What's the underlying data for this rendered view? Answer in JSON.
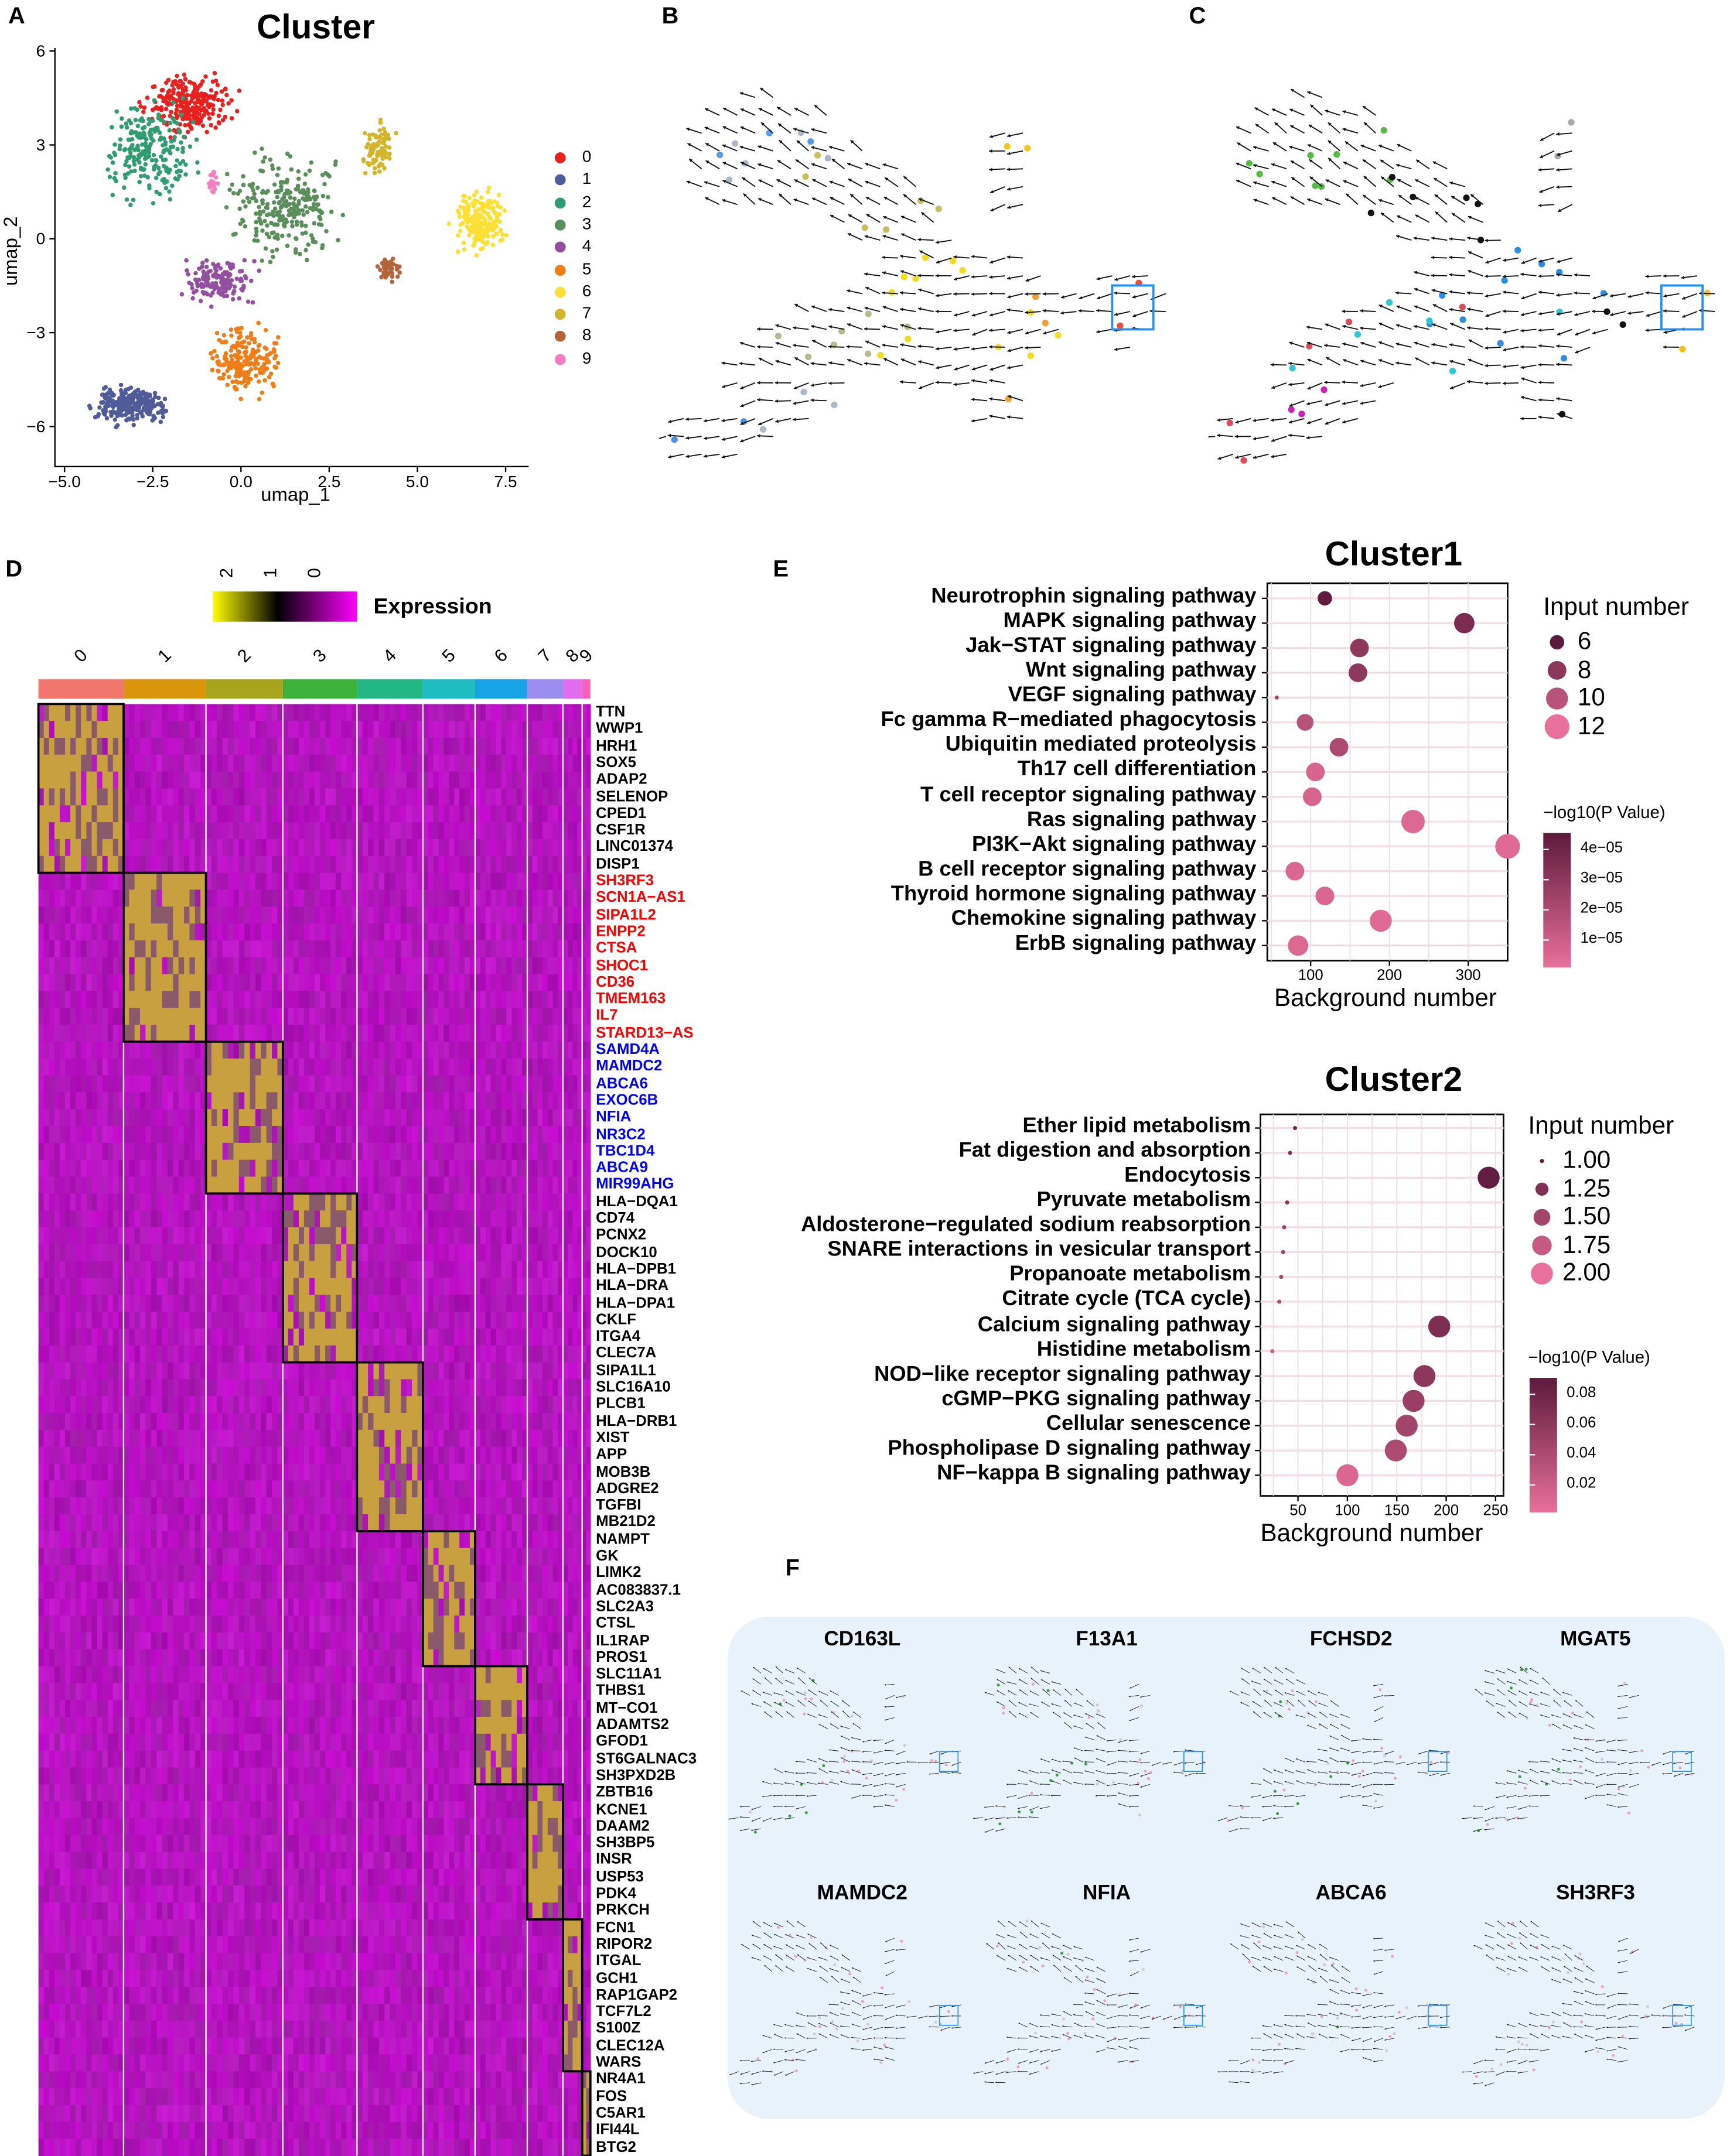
{
  "panels": {
    "A": "A",
    "B": "B",
    "C": "C",
    "D": "D",
    "E": "E",
    "F": "F"
  },
  "panel_a": {
    "title": "Cluster",
    "xlabel": "umap_1",
    "ylabel": "umap_2",
    "xticks": [
      "−5.0",
      "−2.5",
      "0.0",
      "2.5",
      "5.0",
      "7.5"
    ],
    "yticks": [
      "6",
      "3",
      "0",
      "−3",
      "−6"
    ],
    "legend": [
      {
        "label": "0",
        "color": "#E8201E"
      },
      {
        "label": "1",
        "color": "#4F5C99"
      },
      {
        "label": "2",
        "color": "#2F9C72"
      },
      {
        "label": "3",
        "color": "#5A8E5A"
      },
      {
        "label": "4",
        "color": "#9450A0"
      },
      {
        "label": "5",
        "color": "#F07E18"
      },
      {
        "label": "6",
        "color": "#FCE036"
      },
      {
        "label": "7",
        "color": "#D2B52A"
      },
      {
        "label": "8",
        "color": "#B4643A"
      },
      {
        "label": "9",
        "color": "#F47FBE"
      }
    ]
  },
  "panel_d": {
    "legend_title": "Expression",
    "legend_ticks": [
      "2",
      "1",
      "0"
    ],
    "cluster_labels": [
      "0",
      "1",
      "2",
      "3",
      "4",
      "5",
      "6",
      "7",
      "8",
      "9"
    ],
    "cluster_colors": [
      "#F0766E",
      "#D9960C",
      "#A8A41C",
      "#3DB23A",
      "#22B784",
      "#1FBCC2",
      "#18A3E6",
      "#9B8CF0",
      "#E06CF0",
      "#FB62B9"
    ],
    "genes": [
      {
        "name": "TTN",
        "color": "#000000",
        "cluster": 0
      },
      {
        "name": "WWP1",
        "color": "#000000",
        "cluster": 0
      },
      {
        "name": "HRH1",
        "color": "#000000",
        "cluster": 0
      },
      {
        "name": "SOX5",
        "color": "#000000",
        "cluster": 0
      },
      {
        "name": "ADAP2",
        "color": "#000000",
        "cluster": 0
      },
      {
        "name": "SELENOP",
        "color": "#000000",
        "cluster": 0
      },
      {
        "name": "CPED1",
        "color": "#000000",
        "cluster": 0
      },
      {
        "name": "CSF1R",
        "color": "#000000",
        "cluster": 0
      },
      {
        "name": "LINC01374",
        "color": "#000000",
        "cluster": 0
      },
      {
        "name": "DISP1",
        "color": "#000000",
        "cluster": 0
      },
      {
        "name": "SH3RF3",
        "color": "#FF0000",
        "cluster": 1
      },
      {
        "name": "SCN1A−AS1",
        "color": "#FF0000",
        "cluster": 1
      },
      {
        "name": "SIPA1L2",
        "color": "#FF0000",
        "cluster": 1
      },
      {
        "name": "ENPP2",
        "color": "#FF0000",
        "cluster": 1
      },
      {
        "name": "CTSA",
        "color": "#FF0000",
        "cluster": 1
      },
      {
        "name": "SHOC1",
        "color": "#FF0000",
        "cluster": 1
      },
      {
        "name": "CD36",
        "color": "#FF0000",
        "cluster": 1
      },
      {
        "name": "TMEM163",
        "color": "#FF0000",
        "cluster": 1
      },
      {
        "name": "IL7",
        "color": "#FF0000",
        "cluster": 1
      },
      {
        "name": "STARD13−AS",
        "color": "#FF0000",
        "cluster": 1
      },
      {
        "name": "SAMD4A",
        "color": "#0000FF",
        "cluster": 2
      },
      {
        "name": "MAMDC2",
        "color": "#0000FF",
        "cluster": 2
      },
      {
        "name": "ABCA6",
        "color": "#0000FF",
        "cluster": 2
      },
      {
        "name": "EXOC6B",
        "color": "#0000FF",
        "cluster": 2
      },
      {
        "name": "NFIA",
        "color": "#0000FF",
        "cluster": 2
      },
      {
        "name": "NR3C2",
        "color": "#0000FF",
        "cluster": 2
      },
      {
        "name": "TBC1D4",
        "color": "#0000FF",
        "cluster": 2
      },
      {
        "name": "ABCA9",
        "color": "#0000FF",
        "cluster": 2
      },
      {
        "name": "MIR99AHG",
        "color": "#0000FF",
        "cluster": 2
      },
      {
        "name": "HLA−DQA1",
        "color": "#000000",
        "cluster": 3
      },
      {
        "name": "CD74",
        "color": "#000000",
        "cluster": 3
      },
      {
        "name": "PCNX2",
        "color": "#000000",
        "cluster": 3
      },
      {
        "name": "DOCK10",
        "color": "#000000",
        "cluster": 3
      },
      {
        "name": "HLA−DPB1",
        "color": "#000000",
        "cluster": 3
      },
      {
        "name": "HLA−DRA",
        "color": "#000000",
        "cluster": 3
      },
      {
        "name": "HLA−DPA1",
        "color": "#000000",
        "cluster": 3
      },
      {
        "name": "CKLF",
        "color": "#000000",
        "cluster": 3
      },
      {
        "name": "ITGA4",
        "color": "#000000",
        "cluster": 3
      },
      {
        "name": "CLEC7A",
        "color": "#000000",
        "cluster": 3
      },
      {
        "name": "SIPA1L1",
        "color": "#000000",
        "cluster": 4
      },
      {
        "name": "SLC16A10",
        "color": "#000000",
        "cluster": 4
      },
      {
        "name": "PLCB1",
        "color": "#000000",
        "cluster": 4
      },
      {
        "name": "HLA−DRB1",
        "color": "#000000",
        "cluster": 4
      },
      {
        "name": "XIST",
        "color": "#000000",
        "cluster": 4
      },
      {
        "name": "APP",
        "color": "#000000",
        "cluster": 4
      },
      {
        "name": "MOB3B",
        "color": "#000000",
        "cluster": 4
      },
      {
        "name": "ADGRE2",
        "color": "#000000",
        "cluster": 4
      },
      {
        "name": "TGFBI",
        "color": "#000000",
        "cluster": 4
      },
      {
        "name": "MB21D2",
        "color": "#000000",
        "cluster": 4
      },
      {
        "name": "NAMPT",
        "color": "#000000",
        "cluster": 5
      },
      {
        "name": "GK",
        "color": "#000000",
        "cluster": 5
      },
      {
        "name": "LIMK2",
        "color": "#000000",
        "cluster": 5
      },
      {
        "name": "AC083837.1",
        "color": "#000000",
        "cluster": 5
      },
      {
        "name": "SLC2A3",
        "color": "#000000",
        "cluster": 5
      },
      {
        "name": "CTSL",
        "color": "#000000",
        "cluster": 5
      },
      {
        "name": "IL1RAP",
        "color": "#000000",
        "cluster": 5
      },
      {
        "name": "PROS1",
        "color": "#000000",
        "cluster": 5
      },
      {
        "name": "SLC11A1",
        "color": "#000000",
        "cluster": 6
      },
      {
        "name": "THBS1",
        "color": "#000000",
        "cluster": 6
      },
      {
        "name": "MT−CO1",
        "color": "#000000",
        "cluster": 6
      },
      {
        "name": "ADAMTS2",
        "color": "#000000",
        "cluster": 6
      },
      {
        "name": "GFOD1",
        "color": "#000000",
        "cluster": 6
      },
      {
        "name": "ST6GALNAC3",
        "color": "#000000",
        "cluster": 6
      },
      {
        "name": "SH3PXD2B",
        "color": "#000000",
        "cluster": 6
      },
      {
        "name": "ZBTB16",
        "color": "#000000",
        "cluster": 7
      },
      {
        "name": "KCNE1",
        "color": "#000000",
        "cluster": 7
      },
      {
        "name": "DAAM2",
        "color": "#000000",
        "cluster": 7
      },
      {
        "name": "SH3BP5",
        "color": "#000000",
        "cluster": 7
      },
      {
        "name": "INSR",
        "color": "#000000",
        "cluster": 7
      },
      {
        "name": "USP53",
        "color": "#000000",
        "cluster": 7
      },
      {
        "name": "PDK4",
        "color": "#000000",
        "cluster": 7
      },
      {
        "name": "PRKCH",
        "color": "#000000",
        "cluster": 7
      },
      {
        "name": "FCN1",
        "color": "#000000",
        "cluster": 8
      },
      {
        "name": "RIPOR2",
        "color": "#000000",
        "cluster": 8
      },
      {
        "name": "ITGAL",
        "color": "#000000",
        "cluster": 8
      },
      {
        "name": "GCH1",
        "color": "#000000",
        "cluster": 8
      },
      {
        "name": "RAP1GAP2",
        "color": "#000000",
        "cluster": 8
      },
      {
        "name": "TCF7L2",
        "color": "#000000",
        "cluster": 8
      },
      {
        "name": "S100Z",
        "color": "#000000",
        "cluster": 8
      },
      {
        "name": "CLEC12A",
        "color": "#000000",
        "cluster": 8
      },
      {
        "name": "WARS",
        "color": "#000000",
        "cluster": 8
      },
      {
        "name": "NR4A1",
        "color": "#000000",
        "cluster": 9
      },
      {
        "name": "FOS",
        "color": "#000000",
        "cluster": 9
      },
      {
        "name": "C5AR1",
        "color": "#000000",
        "cluster": 9
      },
      {
        "name": "IFI44L",
        "color": "#000000",
        "cluster": 9
      },
      {
        "name": "BTG2",
        "color": "#000000",
        "cluster": 9
      }
    ]
  },
  "chart_data": [
    {
      "type": "scatter",
      "title": "Cluster1",
      "xlabel": "Background number",
      "ylabel": "",
      "xlim": [
        45,
        350
      ],
      "xticks": [
        "100",
        "200",
        "300"
      ],
      "size_legend_title": "Input number",
      "size_legend": [
        6,
        8,
        10,
        12
      ],
      "color_legend_title": "−log10(P Value)",
      "color_legend": [
        "4e−05",
        "3e−05",
        "2e−05",
        "1e−05"
      ],
      "color_range": [
        0,
        4.6e-05
      ],
      "points": [
        {
          "term": "Neurotrophin signaling pathway",
          "x": 118,
          "size": 6,
          "p": 4.5e-05
        },
        {
          "term": "MAPK signaling pathway",
          "x": 295,
          "size": 9,
          "p": 3.6e-05
        },
        {
          "term": "Jak−STAT signaling pathway",
          "x": 162,
          "size": 8,
          "p": 3e-05
        },
        {
          "term": "Wnt signaling pathway",
          "x": 160,
          "size": 8,
          "p": 3e-05
        },
        {
          "term": "VEGF signaling pathway",
          "x": 57,
          "size": 4,
          "p": 2.2e-05
        },
        {
          "term": "Fc gamma R−mediated phagocytosis",
          "x": 93,
          "size": 7,
          "p": 1.6e-05
        },
        {
          "term": "Ubiquitin mediated proteolysis",
          "x": 136,
          "size": 8,
          "p": 2e-05
        },
        {
          "term": "Th17 cell differentiation",
          "x": 106,
          "size": 8,
          "p": 6e-06
        },
        {
          "term": "T cell receptor signaling pathway",
          "x": 102,
          "size": 8,
          "p": 6e-06
        },
        {
          "term": "Ras signaling pathway",
          "x": 230,
          "size": 11,
          "p": 4e-06
        },
        {
          "term": "PI3K−Akt signaling pathway",
          "x": 350,
          "size": 12,
          "p": 3e-06
        },
        {
          "term": "B cell receptor signaling pathway",
          "x": 80,
          "size": 8,
          "p": 5e-06
        },
        {
          "term": "Thyroid hormone signaling pathway",
          "x": 118,
          "size": 8,
          "p": 5e-06
        },
        {
          "term": "Chemokine signaling pathway",
          "x": 189,
          "size": 10,
          "p": 3e-06
        },
        {
          "term": "ErbB signaling pathway",
          "x": 84,
          "size": 9,
          "p": 4e-06
        }
      ]
    },
    {
      "type": "scatter",
      "title": "Cluster2",
      "xlabel": "Background number",
      "ylabel": "",
      "xlim": [
        12,
        258
      ],
      "xticks": [
        "50",
        "100",
        "150",
        "200",
        "250"
      ],
      "size_legend_title": "Input number",
      "size_legend": [
        "1.00",
        "1.25",
        "1.50",
        "1.75",
        "2.00"
      ],
      "color_legend_title": "−log10(P Value)",
      "color_legend": [
        "0.08",
        "0.06",
        "0.04",
        "0.02"
      ],
      "color_range": [
        0.012,
        0.088
      ],
      "points": [
        {
          "term": "Ether lipid metabolism",
          "x": 47,
          "size": 1,
          "p": 0.075
        },
        {
          "term": "Fat digestion and absorption",
          "x": 42,
          "size": 1,
          "p": 0.068
        },
        {
          "term": "Endocytosis",
          "x": 243,
          "size": 2,
          "p": 0.085
        },
        {
          "term": "Pyruvate metabolism",
          "x": 39,
          "size": 1,
          "p": 0.062
        },
        {
          "term": "Aldosterone−regulated sodium reabsorption",
          "x": 36,
          "size": 1,
          "p": 0.058
        },
        {
          "term": "SNARE interactions in vesicular transport",
          "x": 35,
          "size": 1,
          "p": 0.052
        },
        {
          "term": "Propanoate metabolism",
          "x": 33,
          "size": 1,
          "p": 0.048
        },
        {
          "term": "Citrate cycle (TCA cycle)",
          "x": 31,
          "size": 1,
          "p": 0.044
        },
        {
          "term": "Calcium signaling pathway",
          "x": 193,
          "size": 2,
          "p": 0.07
        },
        {
          "term": "Histidine metabolism",
          "x": 24,
          "size": 1,
          "p": 0.03
        },
        {
          "term": "NOD−like receptor signaling pathway",
          "x": 178,
          "size": 2,
          "p": 0.062
        },
        {
          "term": "cGMP−PKG signaling pathway",
          "x": 167,
          "size": 2,
          "p": 0.055
        },
        {
          "term": "Cellular senescence",
          "x": 160,
          "size": 2,
          "p": 0.05
        },
        {
          "term": "Phospholipase D signaling pathway",
          "x": 149,
          "size": 2,
          "p": 0.045
        },
        {
          "term": "NF−kappa B signaling pathway",
          "x": 100,
          "size": 2,
          "p": 0.02
        }
      ]
    }
  ],
  "panel_f": {
    "genes": [
      "CD163L",
      "F13A1",
      "FCHSD2",
      "MGAT5",
      "MAMDC2",
      "NFIA",
      "ABCA6",
      "SH3RF3"
    ]
  },
  "colors": {
    "highlight_box": "#1E90FF",
    "f_background": "#E8F2FA"
  }
}
